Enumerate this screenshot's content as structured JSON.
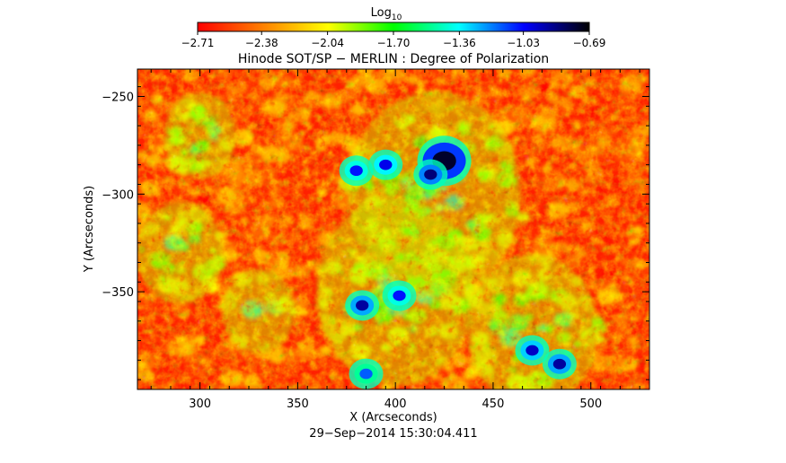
{
  "chart_data": {
    "type": "heatmap",
    "title": "Hinode SOT/SP − MERLIN : Degree of Polarization",
    "xlabel": "X (Arcseconds)",
    "ylabel": "Y (Arcseconds)",
    "timestamp": "29−Sep−2014 15:30:04.411",
    "xlim": [
      268,
      530
    ],
    "ylim": [
      -400,
      -236
    ],
    "x_ticks": [
      300,
      350,
      400,
      450,
      500
    ],
    "x_tick_labels": [
      "300",
      "350",
      "400",
      "450",
      "500"
    ],
    "y_ticks": [
      -250,
      -300,
      -350
    ],
    "y_tick_labels": [
      "−250",
      "−300",
      "−350"
    ],
    "colorbar": {
      "label_main": "Log",
      "label_sub": "10",
      "min": -2.71,
      "max": -0.69,
      "tick_values": [
        -2.71,
        -2.38,
        -2.04,
        -1.7,
        -1.36,
        -1.03,
        -0.69
      ],
      "tick_labels": [
        "−2.71",
        "−2.38",
        "−2.04",
        "−1.70",
        "−1.36",
        "−1.03",
        "−0.69"
      ],
      "colormap": [
        "#ff0000",
        "#ff8000",
        "#ffff00",
        "#00ff00",
        "#00ffff",
        "#0000ff",
        "#000000"
      ]
    },
    "features": [
      {
        "x": 425,
        "y": -283,
        "value": -0.8
      },
      {
        "x": 418,
        "y": -290,
        "value": -0.9
      },
      {
        "x": 380,
        "y": -288,
        "value": -1.1
      },
      {
        "x": 395,
        "y": -285,
        "value": -1.05
      },
      {
        "x": 383,
        "y": -357,
        "value": -0.95
      },
      {
        "x": 402,
        "y": -352,
        "value": -1.1
      },
      {
        "x": 470,
        "y": -380,
        "value": -1.0
      },
      {
        "x": 484,
        "y": -387,
        "value": -0.95
      },
      {
        "x": 385,
        "y": -392,
        "value": -1.2
      }
    ]
  }
}
